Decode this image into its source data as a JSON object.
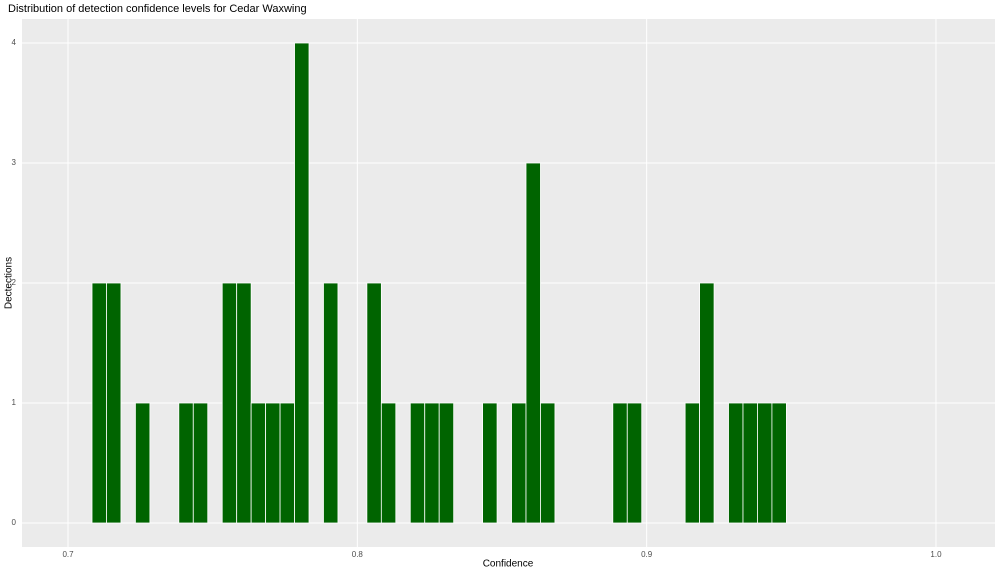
{
  "chart_data": {
    "type": "histogram",
    "title": "Distribution of detection confidence levels for Cedar Waxwing",
    "x_label": "Confidence",
    "y_label": "Dectections",
    "bins": [
      0.7083,
      0.7133,
      0.7183,
      0.7233,
      0.7283,
      0.7333,
      0.7383,
      0.7433,
      0.7483,
      0.7533,
      0.7583,
      0.7633,
      0.7683,
      0.7733,
      0.7783,
      0.7833,
      0.7883,
      0.7933,
      0.7983,
      0.8033,
      0.8083,
      0.8133,
      0.8183,
      0.8233,
      0.8283,
      0.8333,
      0.8383,
      0.8433,
      0.8483,
      0.8533,
      0.8583,
      0.8633,
      0.8683,
      0.8733,
      0.8783,
      0.8833,
      0.8883,
      0.8933,
      0.8983,
      0.9033,
      0.9083,
      0.9133,
      0.9183,
      0.9233,
      0.9283,
      0.9333,
      0.9383,
      0.9433,
      0.9483
    ],
    "values": [
      2,
      2,
      0,
      1,
      0,
      0,
      1,
      1,
      0,
      2,
      2,
      1,
      1,
      1,
      4,
      0,
      2,
      0,
      0,
      2,
      1,
      0,
      1,
      1,
      1,
      0,
      0,
      1,
      0,
      1,
      3,
      1,
      0,
      0,
      0,
      0,
      1,
      1,
      0,
      0,
      0,
      1,
      2,
      0,
      1,
      1,
      1,
      1
    ],
    "color": "#006400",
    "xlim": [
      0.6841,
      1.0204
    ],
    "xticks": [
      0.7,
      0.8,
      0.9,
      {
        "value": 1.0,
        "label": "1.0"
      }
    ],
    "ylim": [
      -0.2,
      4.2
    ],
    "yticks": [
      0,
      1,
      2,
      3,
      4
    ],
    "grid": true
  }
}
